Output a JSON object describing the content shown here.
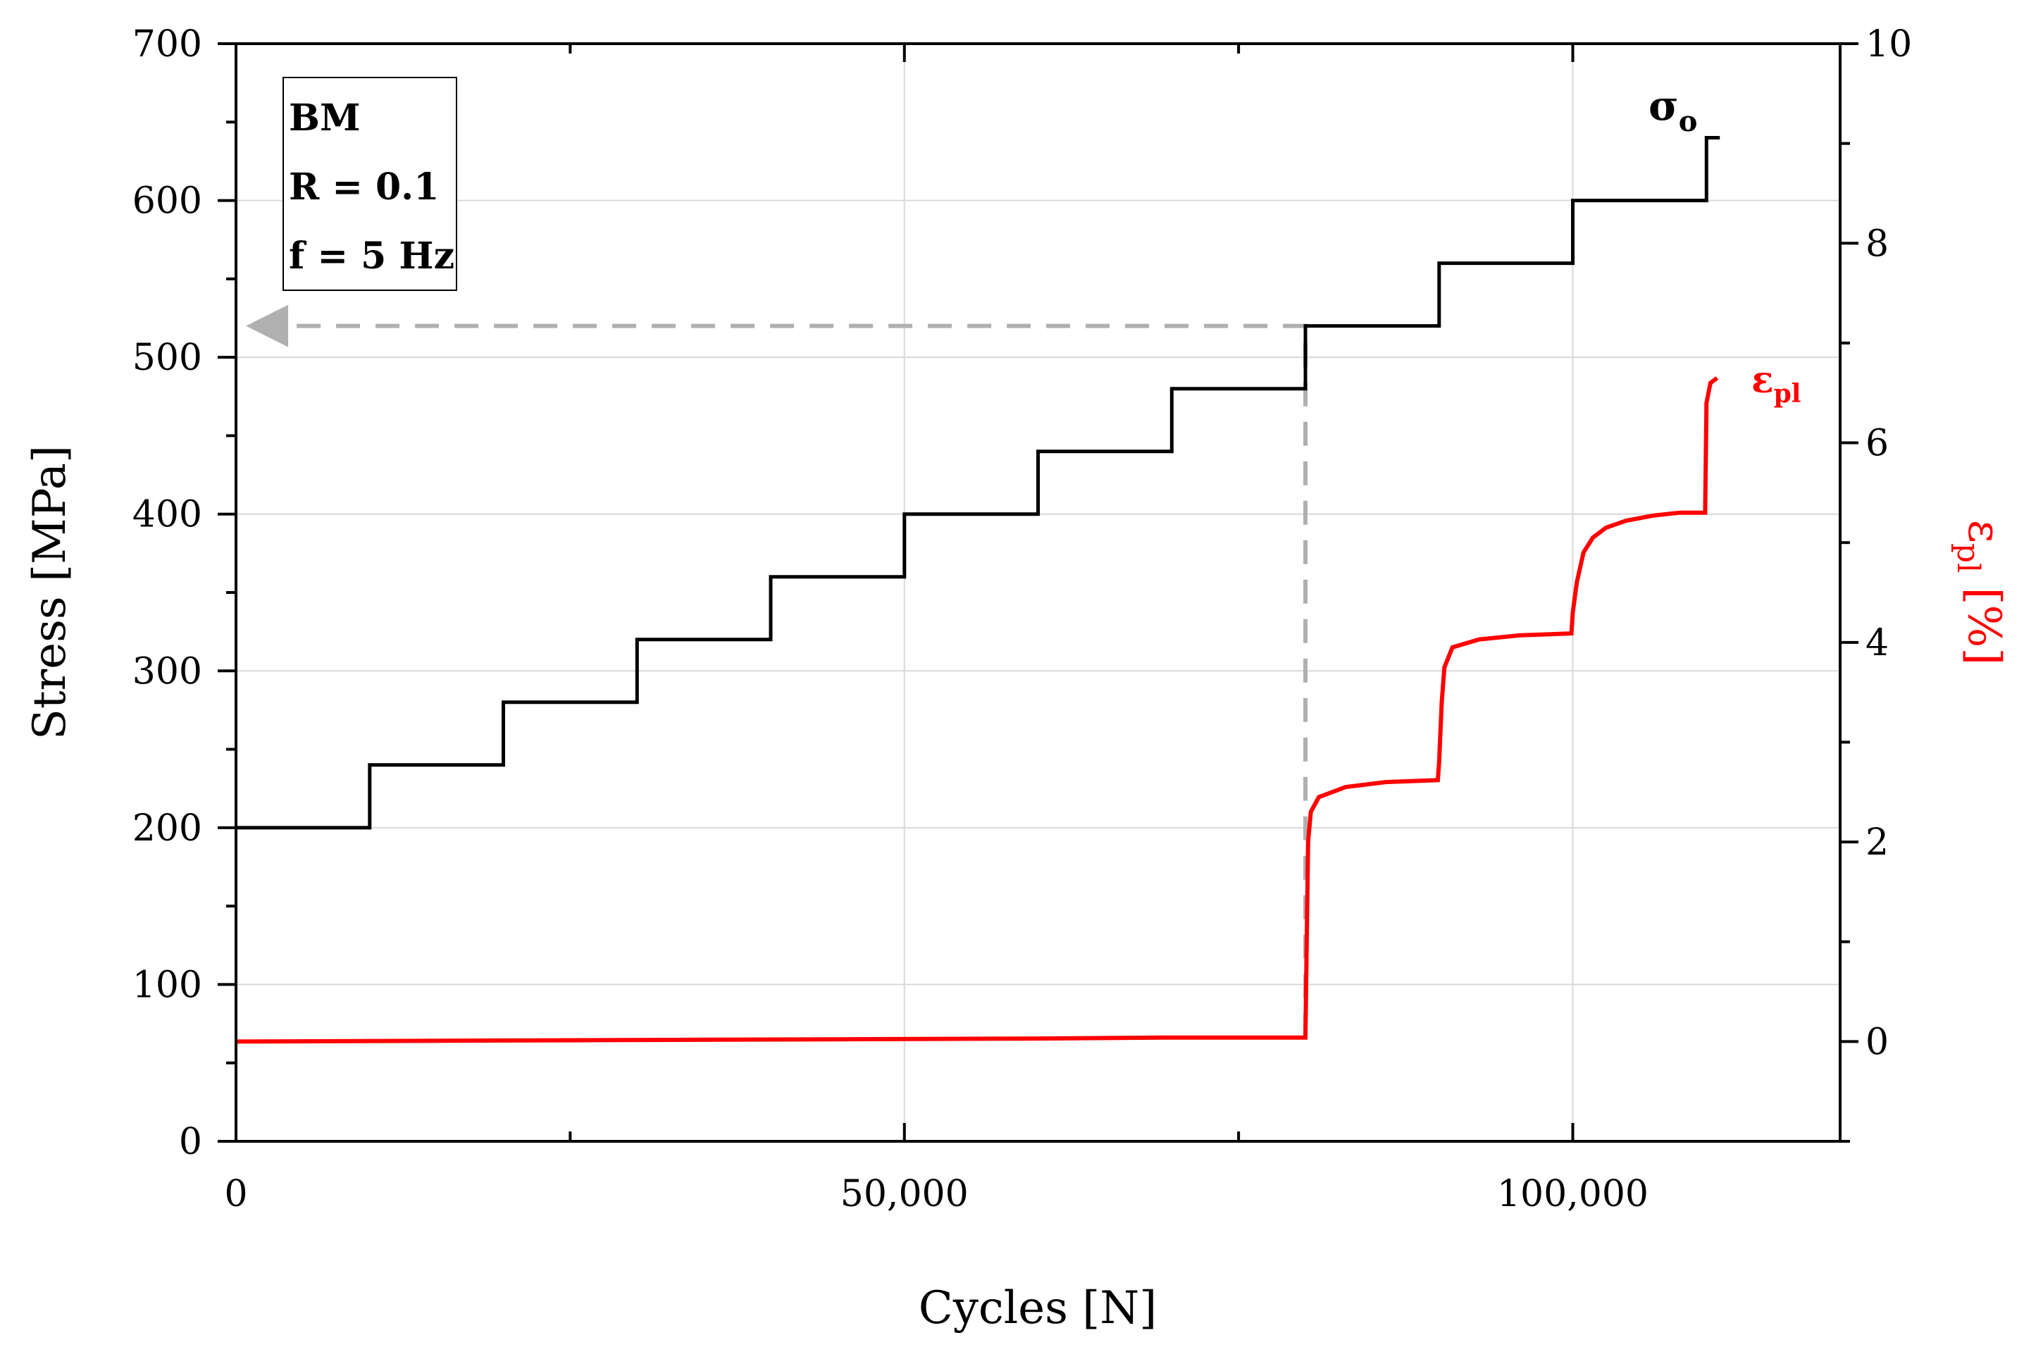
{
  "chart_data": {
    "type": "line",
    "title": "",
    "xlabel": "Cycles [N]",
    "ylabel": "Stress [MPa]",
    "y2label_main": "ε",
    "y2label_sub": "pl",
    "y2label_unit": " [%]",
    "xlim": [
      0,
      120000
    ],
    "ylim": [
      0,
      700
    ],
    "y2lim": [
      -1,
      10
    ],
    "x_ticks": [
      0,
      50000,
      100000
    ],
    "x_tick_labels": [
      "0",
      "50,000",
      "100,000"
    ],
    "y_ticks": [
      0,
      100,
      200,
      300,
      400,
      500,
      600,
      700
    ],
    "y_tick_labels": [
      "0",
      "100",
      "200",
      "300",
      "400",
      "500",
      "600",
      "700"
    ],
    "y2_ticks": [
      0,
      2,
      4,
      6,
      8,
      10
    ],
    "y2_tick_labels": [
      "0",
      "2",
      "4",
      "6",
      "8",
      "10"
    ],
    "grid": true,
    "info_box": [
      "BM",
      "R = 0.1",
      "f = 5 Hz"
    ],
    "series": [
      {
        "name": "σo",
        "label_main": "σ",
        "label_sub": "o",
        "axis": "left",
        "color": "#000000",
        "x": [
          0,
          10000,
          10000,
          20000,
          20000,
          30000,
          30000,
          40000,
          40000,
          50000,
          50000,
          60000,
          60000,
          70000,
          70000,
          80000,
          80000,
          90000,
          90000,
          100000,
          100000,
          110000,
          110000,
          111000
        ],
        "y": [
          200,
          200,
          240,
          240,
          280,
          280,
          320,
          320,
          360,
          360,
          400,
          400,
          440,
          440,
          480,
          480,
          520,
          520,
          560,
          560,
          600,
          600,
          640,
          640
        ]
      },
      {
        "name": "εpl",
        "label_main": "ε",
        "label_sub": "pl",
        "axis": "right",
        "color": "#ff0000",
        "x": [
          0,
          20000,
          40000,
          60000,
          70000,
          80000,
          80200,
          80400,
          81000,
          83000,
          86000,
          89900,
          90000,
          90200,
          90400,
          91000,
          93000,
          96000,
          99900,
          100000,
          100300,
          100800,
          101500,
          102500,
          104000,
          106000,
          108000,
          109900,
          110000,
          110300,
          110800
        ],
        "y": [
          0,
          0.01,
          0.02,
          0.03,
          0.04,
          0.04,
          2.0,
          2.3,
          2.45,
          2.55,
          2.6,
          2.62,
          2.8,
          3.4,
          3.75,
          3.95,
          4.03,
          4.07,
          4.09,
          4.3,
          4.6,
          4.9,
          5.05,
          5.15,
          5.22,
          5.27,
          5.3,
          5.3,
          6.4,
          6.6,
          6.65
        ]
      }
    ],
    "annotation": {
      "type": "dashed-arrow",
      "color": "#b0b0b0",
      "from": [
        80000,
        0.04
      ],
      "corner": [
        80000,
        520
      ],
      "to": [
        0,
        520
      ]
    }
  }
}
